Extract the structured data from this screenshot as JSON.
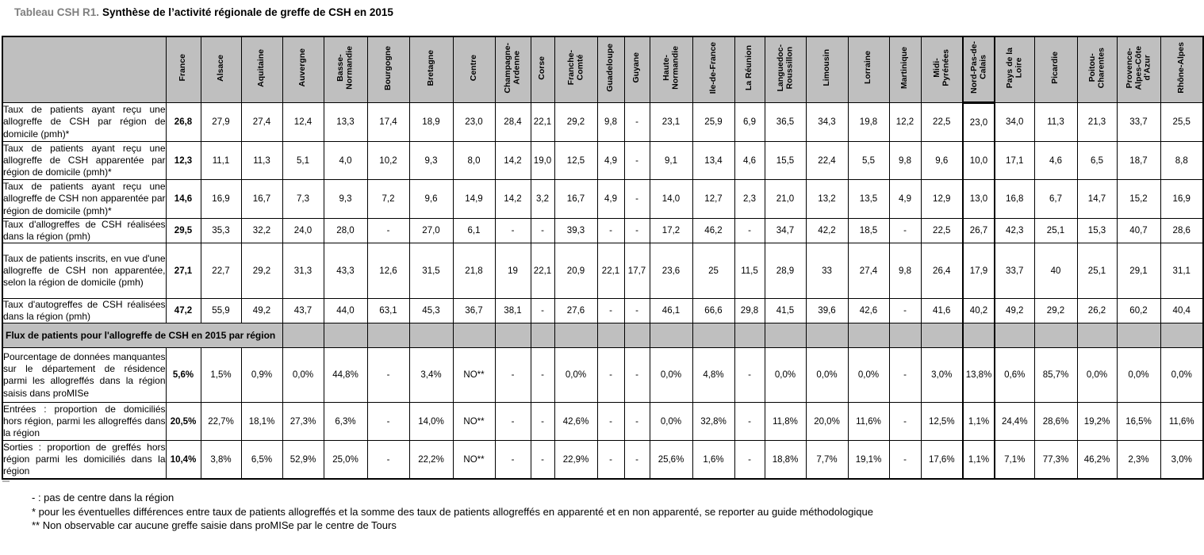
{
  "title": {
    "prefix": "Tableau CSH R1.",
    "main": "Synthèse de l’activité régionale de greffe de CSH en 2015"
  },
  "table": {
    "columns": [
      {
        "name": "France",
        "display": "France"
      },
      {
        "name": "Alsace",
        "display": "Alsace"
      },
      {
        "name": "Aquitaine",
        "display": "Aquitaine"
      },
      {
        "name": "Auvergne",
        "display": "Auvergne"
      },
      {
        "name": "Basse-Normandie",
        "display": "Basse-\nNormandie"
      },
      {
        "name": "Bourgogne",
        "display": "Bourgogne"
      },
      {
        "name": "Bretagne",
        "display": "Bretagne"
      },
      {
        "name": "Centre",
        "display": "Centre"
      },
      {
        "name": "Champagne-Ardenne",
        "display": "Champagne-\nArdenne"
      },
      {
        "name": "Corse",
        "display": "Corse"
      },
      {
        "name": "Franche-Comté",
        "display": "Franche-\nComté"
      },
      {
        "name": "Guadeloupe",
        "display": "Guadeloupe"
      },
      {
        "name": "Guyane",
        "display": "Guyane"
      },
      {
        "name": "Haute-Normandie",
        "display": "Haute-\nNormandie"
      },
      {
        "name": "Ile-de-France",
        "display": "Ile-de-France"
      },
      {
        "name": "La Réunion",
        "display": "La Réunion"
      },
      {
        "name": "Languedoc-Roussillon",
        "display": "Languedoc-\nRoussillon"
      },
      {
        "name": "Limousin",
        "display": "Limousin"
      },
      {
        "name": "Lorraine",
        "display": "Lorraine"
      },
      {
        "name": "Martinique",
        "display": "Martinique"
      },
      {
        "name": "Midi-Pyrénées",
        "display": "Midi-\nPyrénées"
      },
      {
        "name": "Nord-Pas-de-Calais",
        "display": "Nord-Pas-de-\nCalais"
      },
      {
        "name": "Pays de la Loire",
        "display": "Pays de la\nLoire"
      },
      {
        "name": "Picardie",
        "display": "Picardie"
      },
      {
        "name": "Poitou-Charentes",
        "display": "Poitou-\nCharentes"
      },
      {
        "name": "Provence-Alpes-Côte d'Azur",
        "display": "Provence-\nAlpes-Côte\nd'Azur"
      },
      {
        "name": "Rhône-Alpes",
        "display": "Rhône-Alpes"
      }
    ],
    "rows": [
      {
        "label": "Taux de patients ayant reçu une allogreffe de CSH par région de domicile (pmh)*",
        "values": [
          "26,8",
          "27,9",
          "27,4",
          "12,4",
          "13,3",
          "17,4",
          "18,9",
          "23,0",
          "28,4",
          "22,1",
          "29,2",
          "9,8",
          "-",
          "23,1",
          "25,9",
          "6,9",
          "36,5",
          "34,3",
          "19,8",
          "12,2",
          "22,5",
          "23,0",
          "34,0",
          "11,3",
          "21,3",
          "33,7",
          "25,5"
        ]
      },
      {
        "label": "Taux de patients ayant reçu une allogreffe de CSH apparentée par région de domicile (pmh)*",
        "values": [
          "12,3",
          "11,1",
          "11,3",
          "5,1",
          "4,0",
          "10,2",
          "9,3",
          "8,0",
          "14,2",
          "19,0",
          "12,5",
          "4,9",
          "-",
          "9,1",
          "13,4",
          "4,6",
          "15,5",
          "22,4",
          "5,5",
          "9,8",
          "9,6",
          "10,0",
          "17,1",
          "4,6",
          "6,5",
          "18,7",
          "8,8"
        ]
      },
      {
        "label": "Taux de patients ayant reçu une allogreffe de CSH non apparentée par région de domicile (pmh)*",
        "values": [
          "14,6",
          "16,9",
          "16,7",
          "7,3",
          "9,3",
          "7,2",
          "9,6",
          "14,9",
          "14,2",
          "3,2",
          "16,7",
          "4,9",
          "-",
          "14,0",
          "12,7",
          "2,3",
          "21,0",
          "13,2",
          "13,5",
          "4,9",
          "12,9",
          "13,0",
          "16,8",
          "6,7",
          "14,7",
          "15,2",
          "16,9"
        ]
      },
      {
        "label": "Taux d'allogreffes de CSH réalisées dans la région (pmh)",
        "values": [
          "29,5",
          "35,3",
          "32,2",
          "24,0",
          "28,0",
          "-",
          "27,0",
          "6,1",
          "-",
          "-",
          "39,3",
          "-",
          "-",
          "17,2",
          "46,2",
          "-",
          "34,7",
          "42,2",
          "18,5",
          "-",
          "22,5",
          "26,7",
          "42,3",
          "25,1",
          "15,3",
          "40,7",
          "28,6"
        ]
      },
      {
        "label": "Taux de patients inscrits, en vue d'une allogreffe de CSH non apparentée, selon la région de domicile (pmh)",
        "values": [
          "27,1",
          "22,7",
          "29,2",
          "31,3",
          "43,3",
          "12,6",
          "31,5",
          "21,8",
          "19",
          "22,1",
          "20,9",
          "22,1",
          "17,7",
          "23,6",
          "25",
          "11,5",
          "28,9",
          "33",
          "27,4",
          "9,8",
          "26,4",
          "17,9",
          "33,7",
          "40",
          "25,1",
          "29,1",
          "31,1"
        ]
      },
      {
        "label": "Taux d'autogreffes de CSH réalisées dans la région (pmh)",
        "values": [
          "47,2",
          "55,9",
          "49,2",
          "43,7",
          "44,0",
          "63,1",
          "45,3",
          "36,7",
          "38,1",
          "-",
          "27,6",
          "-",
          "-",
          "46,1",
          "66,6",
          "29,8",
          "41,5",
          "39,6",
          "42,6",
          "-",
          "41,6",
          "40,2",
          "49,2",
          "29,2",
          "26,2",
          "60,2",
          "40,4"
        ]
      }
    ],
    "section_header": "Flux de patients pour l'allogreffe de CSH en 2015 par région",
    "flux_rows": [
      {
        "label": "Pourcentage de données manquantes sur le département de résidence parmi les allogreffés dans la région saisis dans proMISe",
        "values": [
          "5,6%",
          "1,5%",
          "0,9%",
          "0,0%",
          "44,8%",
          "-",
          "3,4%",
          "NO**",
          "-",
          "-",
          "0,0%",
          "-",
          "-",
          "0,0%",
          "4,8%",
          "-",
          "0,0%",
          "0,0%",
          "0,0%",
          "-",
          "3,0%",
          "13,8%",
          "0,6%",
          "85,7%",
          "0,0%",
          "0,0%",
          "0,0%"
        ]
      },
      {
        "label": "Entrées : proportion de domiciliés hors région, parmi les allogreffés dans la région",
        "values": [
          "20,5%",
          "22,7%",
          "18,1%",
          "27,3%",
          "6,3%",
          "-",
          "14,0%",
          "NO**",
          "-",
          "-",
          "42,6%",
          "-",
          "-",
          "0,0%",
          "32,8%",
          "-",
          "11,8%",
          "20,0%",
          "11,6%",
          "-",
          "12,5%",
          "1,1%",
          "24,4%",
          "28,6%",
          "19,2%",
          "16,5%",
          "11,6%"
        ]
      },
      {
        "label": "Sorties : proportion de greffés hors région parmi les domiciliés dans la région",
        "values": [
          "10,4%",
          "3,8%",
          "6,5%",
          "52,9%",
          "25,0%",
          "-",
          "22,2%",
          "NO**",
          "-",
          "-",
          "22,9%",
          "-",
          "-",
          "25,6%",
          "1,6%",
          "-",
          "18,8%",
          "7,7%",
          "19,1%",
          "-",
          "17,6%",
          "1,1%",
          "7,1%",
          "77,3%",
          "46,2%",
          "2,3%",
          "3,0%"
        ]
      }
    ]
  },
  "footnotes": [
    "- : pas de centre dans la région",
    "* pour les éventuelles différences entre taux de patients allogreffés et la somme des taux de patients allogreffés en apparenté et en non apparenté, se reporter au guide méthodologique",
    "** Non observable car aucune greffe saisie dans proMISe par le centre de Tours"
  ]
}
